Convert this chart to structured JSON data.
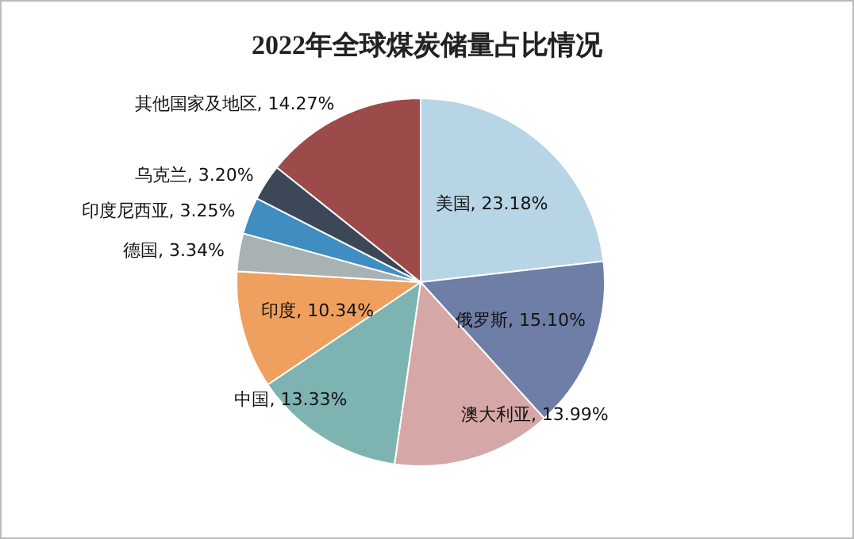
{
  "chart_data": {
    "type": "pie",
    "title": "2022年全球煤炭储量占比情况",
    "categories": [
      "美国",
      "俄罗斯",
      "澳大利亚",
      "中国",
      "印度",
      "德国",
      "印度尼西亚",
      "乌克兰",
      "其他国家及地区"
    ],
    "values": [
      23.18,
      15.1,
      13.99,
      13.33,
      10.34,
      3.34,
      3.25,
      3.2,
      14.27
    ],
    "value_labels": [
      "23.18%",
      "15.10%",
      "13.99%",
      "13.33%",
      "10.34%",
      "3.34%",
      "3.25%",
      "3.20%",
      "14.27%"
    ],
    "colors": [
      "#b8d5e6",
      "#6f7ea6",
      "#d5a7a6",
      "#7db3b1",
      "#f0a05e",
      "#a9b2b3",
      "#3f8dc1",
      "#3c4758",
      "#9d4a4b"
    ]
  }
}
